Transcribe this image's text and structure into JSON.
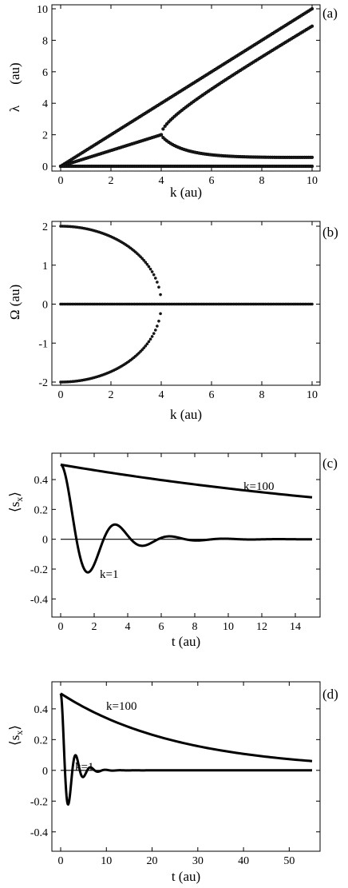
{
  "chart_data": [
    {
      "type": "scatter",
      "panel_label": "(a)",
      "xlabel": "k  (au)",
      "ylabel": "λ",
      "ylabel_unit": "(au)",
      "xlim": [
        0,
        10
      ],
      "ylim": [
        0,
        10
      ],
      "xticks": [
        "0",
        "2",
        "4",
        "6",
        "8",
        "10"
      ],
      "yticks": [
        "0",
        "2",
        "4",
        "6",
        "8",
        "10"
      ],
      "series": [
        {
          "x": [
            0,
            10
          ],
          "y": [
            0,
            10
          ],
          "desc": "lambda = k"
        },
        {
          "x": [
            0,
            0.5,
            1,
            1.5,
            2,
            2.5,
            3,
            3.5,
            4
          ],
          "y": [
            0,
            0.25,
            0.5,
            0.75,
            1.0,
            1.25,
            1.5,
            1.75,
            2.0
          ],
          "desc": "lambda = k/2"
        },
        {
          "x": [
            4,
            4.1,
            4.3,
            4.6,
            5,
            6,
            7,
            8,
            9,
            10
          ],
          "y": [
            2.0,
            2.55,
            2.97,
            3.38,
            3.83,
            4.93,
            5.99,
            7.03,
            8.05,
            9.06
          ],
          "desc": "upper branch"
        },
        {
          "x": [
            4,
            4.1,
            4.3,
            4.6,
            5,
            6,
            7,
            8,
            9,
            10
          ],
          "y": [
            2.0,
            1.55,
            1.33,
            1.22,
            1.17,
            1.07,
            1.01,
            0.97,
            0.95,
            0.94
          ],
          "desc": "lower branch"
        },
        {
          "x": [
            0,
            10
          ],
          "y": [
            0,
            0
          ],
          "desc": "lambda = 0"
        }
      ]
    },
    {
      "type": "scatter",
      "panel_label": "(b)",
      "xlabel": "k  (au)",
      "ylabel": "Ω  (au)",
      "xlim": [
        0,
        10
      ],
      "ylim": [
        -2,
        2
      ],
      "xticks": [
        "0",
        "2",
        "4",
        "6",
        "8",
        "10"
      ],
      "yticks": [
        "2",
        "1",
        "0",
        "-1",
        "-2"
      ],
      "series": [
        {
          "x": [
            0,
            1,
            2,
            3,
            3.5,
            3.8,
            3.95
          ],
          "y": [
            2.0,
            1.94,
            1.73,
            1.32,
            0.97,
            0.62,
            0.31
          ],
          "desc": "upper"
        },
        {
          "x": [
            0,
            1,
            2,
            3,
            3.5,
            3.8,
            3.95
          ],
          "y": [
            -2.0,
            -1.94,
            -1.73,
            -1.32,
            -0.97,
            -0.62,
            -0.31
          ],
          "desc": "lower"
        },
        {
          "x": [
            0,
            10
          ],
          "y": [
            0,
            0
          ],
          "desc": "zero"
        }
      ]
    },
    {
      "type": "line",
      "panel_label": "(c)",
      "xlabel": "t  (au)",
      "ylabel": "⟨s_x⟩",
      "xlim": [
        0,
        15
      ],
      "ylim": [
        -0.5,
        0.55
      ],
      "xticks": [
        "0",
        "2",
        "4",
        "6",
        "8",
        "10",
        "12",
        "14"
      ],
      "yticks": [
        "0.4",
        "0.2",
        "0",
        "-0.2",
        "-0.4"
      ],
      "annotations": [
        "k=100",
        "k=1"
      ],
      "series": [
        {
          "name": "k=100",
          "x": [
            0,
            3,
            6,
            9,
            12,
            15
          ],
          "y": [
            0.5,
            0.445,
            0.397,
            0.354,
            0.315,
            0.28
          ]
        },
        {
          "name": "k=1",
          "x": [
            0,
            0.5,
            1,
            1.5,
            2,
            2.5,
            3,
            3.5,
            4,
            4.5,
            5,
            6,
            7,
            8,
            9,
            10,
            12,
            15
          ],
          "y": [
            0.5,
            0.3,
            -0.02,
            -0.22,
            -0.18,
            0.0,
            0.1,
            0.08,
            0.0,
            -0.04,
            -0.04,
            0.02,
            0.0,
            0.0,
            0.0,
            0.0,
            0.0,
            0.0
          ]
        }
      ]
    },
    {
      "type": "line",
      "panel_label": "(d)",
      "xlabel": "t  (au)",
      "ylabel": "⟨s_x⟩",
      "xlim": [
        0,
        55
      ],
      "ylim": [
        -0.5,
        0.55
      ],
      "xticks": [
        "0",
        "10",
        "20",
        "30",
        "40",
        "50"
      ],
      "yticks": [
        "0.4",
        "0.2",
        "0",
        "-0.2",
        "-0.4"
      ],
      "annotations": [
        "k=100",
        "k=1"
      ],
      "series": [
        {
          "name": "k=100",
          "x": [
            0,
            10,
            20,
            30,
            40,
            55
          ],
          "y": [
            0.5,
            0.32,
            0.22,
            0.15,
            0.1,
            0.06
          ]
        },
        {
          "name": "k=1",
          "x": [
            0,
            0.5,
            1,
            1.5,
            2,
            2.5,
            3,
            3.5,
            4,
            5,
            6,
            8,
            10,
            15
          ],
          "y": [
            0.5,
            0.3,
            0.0,
            -0.22,
            -0.18,
            0.0,
            0.1,
            0.08,
            0.0,
            -0.04,
            0.02,
            0.0,
            0.0,
            0.0
          ]
        }
      ]
    }
  ]
}
